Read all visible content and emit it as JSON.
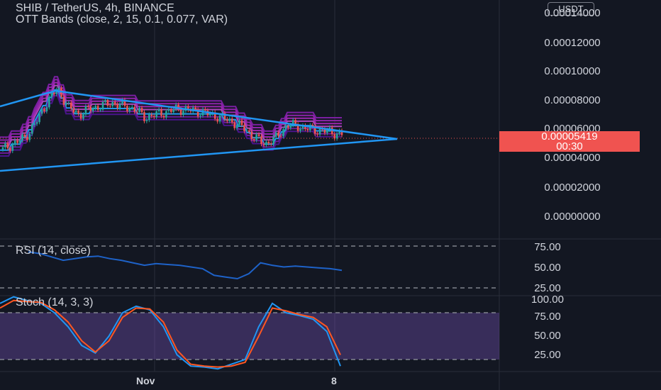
{
  "header": {
    "title": "SHIB / TetherUS, 4h, BINANCE",
    "indicator": "OTT Bands (close, 2, 15, 0.1, 0.077, VAR)",
    "currency": "USDT"
  },
  "price_axis": {
    "labels": [
      "0.00014000",
      "0.00012000",
      "0.00010000",
      "0.00008000",
      "0.00006000",
      "0.00004000",
      "0.00002000",
      "0.00000000"
    ],
    "current_price": "0.00005419",
    "countdown": "00:30"
  },
  "rsi": {
    "legend": "RSI (14, close)",
    "labels": [
      "75.00",
      "50.00",
      "25.00"
    ]
  },
  "stoch": {
    "legend": "Stoch (14, 3, 3)",
    "labels": [
      "100.00",
      "75.00",
      "50.00",
      "25.00"
    ]
  },
  "time_axis": {
    "labels": [
      "Nov",
      "8"
    ]
  },
  "colors": {
    "background": "#131722",
    "up": "#26a69a",
    "down": "#ef5350",
    "triangle": "#2196f3",
    "ott_band": "#9c27b0",
    "rsi_line": "#1e62c8",
    "stoch_k": "#2196f3",
    "stoch_d": "#ff5722",
    "stoch_fill": "#7e57c2"
  },
  "chart_data": [
    {
      "type": "line",
      "title": "SHIB / TetherUS, 4h, BINANCE",
      "y_axis_ticks": [
        0.00014,
        0.00012,
        0.0001,
        8e-05,
        6e-05,
        4e-05,
        2e-05,
        0.0
      ],
      "ylim": [
        0.0,
        0.00014
      ],
      "last_price": 5.419e-05,
      "x_axis_ticks": [
        "Nov",
        "8"
      ],
      "price_series_approx": [
        4.4e-05,
        4.8e-05,
        5.2e-05,
        6.2e-05,
        7.6e-05,
        8.6e-05,
        7.3e-05,
        6.8e-05,
        7.2e-05,
        7.4e-05,
        7.6e-05,
        7.4e-05,
        7.2e-05,
        6.6e-05,
        6.8e-05,
        7e-05,
        7.2e-05,
        7.1e-05,
        7e-05,
        6.8e-05,
        6.6e-05,
        6.3e-05,
        5.9e-05,
        5.2e-05,
        4.8e-05,
        5.2e-05,
        6.1e-05,
        6e-05,
        5.8e-05,
        5.7e-05,
        5.6e-05,
        5.419e-05
      ]
    },
    {
      "type": "line",
      "title": "RSI (14, close)",
      "y_axis_ticks": [
        75,
        50,
        25
      ],
      "values_approx": [
        68,
        66,
        62,
        58,
        60,
        62,
        63,
        60,
        58,
        55,
        52,
        54,
        53,
        52,
        50,
        48,
        40,
        38,
        36,
        42,
        55,
        52,
        50,
        51,
        50,
        49,
        48,
        46
      ]
    },
    {
      "type": "line",
      "title": "Stoch (14, 3, 3)",
      "y_axis_ticks": [
        100,
        75,
        50,
        25
      ],
      "series": [
        {
          "name": "K",
          "values": [
            85,
            92,
            88,
            85,
            75,
            60,
            40,
            32,
            50,
            75,
            82,
            78,
            60,
            30,
            18,
            17,
            15,
            20,
            25,
            60,
            85,
            75,
            72,
            68,
            55,
            18
          ]
        },
        {
          "name": "D",
          "values": [
            80,
            88,
            87,
            86,
            78,
            65,
            45,
            33,
            45,
            70,
            80,
            79,
            65,
            35,
            20,
            18,
            17,
            18,
            22,
            50,
            80,
            77,
            73,
            70,
            60,
            30
          ]
        }
      ]
    }
  ]
}
